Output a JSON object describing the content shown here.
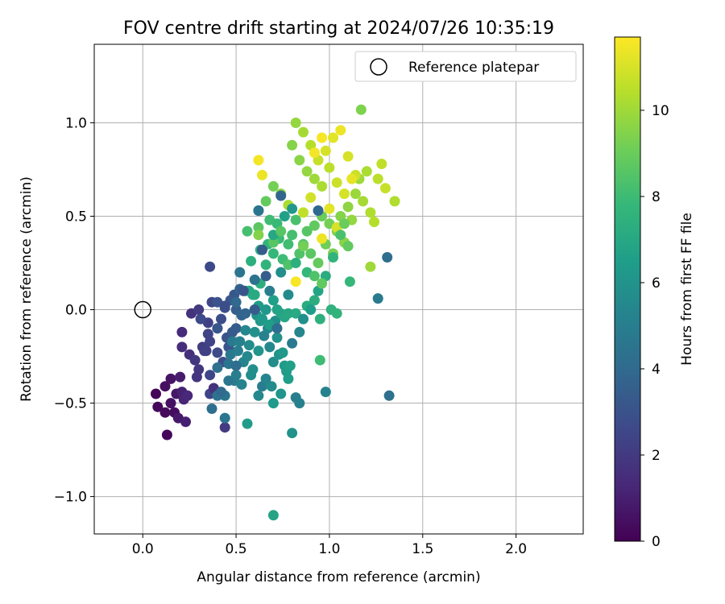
{
  "chart_data": {
    "type": "scatter",
    "title": "FOV centre drift starting at 2024/07/26 10:35:19",
    "xlabel": "Angular distance from reference (arcmin)",
    "ylabel": "Rotation from reference (arcmin)",
    "xlim": [
      -0.26,
      2.36
    ],
    "ylim": [
      -1.2,
      1.42
    ],
    "xticks": [
      0.0,
      0.5,
      1.0,
      1.5,
      2.0
    ],
    "xtick_labels": [
      "0.0",
      "0.5",
      "1.0",
      "1.5",
      "2.0"
    ],
    "yticks": [
      -1.0,
      -0.5,
      0.0,
      0.5,
      1.0
    ],
    "ytick_labels": [
      "−1.0",
      "−0.5",
      "0.0",
      "0.5",
      "1.0"
    ],
    "grid": true,
    "legend": {
      "placement": "top-right",
      "label": "Reference platepar"
    },
    "reference_point": {
      "x": 0.0,
      "y": 0.0
    },
    "colorbar": {
      "label": "Hours from first FF file",
      "colormap": "viridis",
      "range": [
        0,
        11.7
      ],
      "ticks": [
        0,
        2,
        4,
        6,
        8,
        10
      ],
      "tick_labels": [
        "0",
        "2",
        "4",
        "6",
        "8",
        "10"
      ]
    },
    "colormap_stops": [
      "#440154",
      "#482878",
      "#3e4989",
      "#31688e",
      "#26828e",
      "#1f9e89",
      "#35b779",
      "#6ece58",
      "#b5de2b",
      "#fde725"
    ],
    "points": [
      [
        0.07,
        -0.45,
        0.1
      ],
      [
        0.08,
        -0.52,
        0.2
      ],
      [
        0.12,
        -0.55,
        0.3
      ],
      [
        0.13,
        -0.67,
        0.2
      ],
      [
        0.12,
        -0.41,
        0.5
      ],
      [
        0.15,
        -0.37,
        0.6
      ],
      [
        0.15,
        -0.5,
        0.5
      ],
      [
        0.17,
        -0.55,
        0.4
      ],
      [
        0.18,
        -0.45,
        0.7
      ],
      [
        0.19,
        -0.58,
        0.8
      ],
      [
        0.2,
        -0.36,
        0.9
      ],
      [
        0.21,
        -0.44,
        1.1
      ],
      [
        0.22,
        -0.48,
        1.2
      ],
      [
        0.23,
        -0.6,
        1.0
      ],
      [
        0.24,
        -0.46,
        1.3
      ],
      [
        0.21,
        -0.12,
        1.4
      ],
      [
        0.21,
        -0.2,
        1.5
      ],
      [
        0.25,
        -0.24,
        1.6
      ],
      [
        0.26,
        -0.02,
        1.7
      ],
      [
        0.29,
        -0.36,
        1.8
      ],
      [
        0.3,
        -0.32,
        1.9
      ],
      [
        0.3,
        0.0,
        2.0
      ],
      [
        0.32,
        -0.2,
        2.1
      ],
      [
        0.33,
        -0.22,
        2.2
      ],
      [
        0.35,
        -0.07,
        2.3
      ],
      [
        0.35,
        -0.13,
        2.4
      ],
      [
        0.36,
        -0.17,
        2.4
      ],
      [
        0.37,
        0.04,
        2.5
      ],
      [
        0.36,
        -0.45,
        2.4
      ],
      [
        0.36,
        -0.35,
        2.5
      ],
      [
        0.36,
        0.23,
        2.6
      ],
      [
        0.4,
        -0.1,
        2.6
      ],
      [
        0.4,
        -0.23,
        2.7
      ],
      [
        0.42,
        -0.05,
        2.8
      ],
      [
        0.43,
        -0.28,
        2.9
      ],
      [
        0.44,
        0.01,
        3.0
      ],
      [
        0.45,
        -0.15,
        3.0
      ],
      [
        0.46,
        -0.2,
        3.1
      ],
      [
        0.47,
        0.05,
        3.2
      ],
      [
        0.48,
        -0.12,
        3.3
      ],
      [
        0.44,
        -0.63,
        2.0
      ],
      [
        0.49,
        0.08,
        3.2
      ],
      [
        0.5,
        -0.1,
        3.4
      ],
      [
        0.5,
        0.0,
        3.5
      ],
      [
        0.52,
        0.11,
        3.6
      ],
      [
        0.53,
        -0.03,
        3.7
      ],
      [
        0.38,
        -0.42,
        1.7
      ],
      [
        0.37,
        -0.53,
        4.2
      ],
      [
        0.4,
        -0.31,
        4.3
      ],
      [
        0.4,
        -0.46,
        4.4
      ],
      [
        0.44,
        -0.46,
        4.5
      ],
      [
        0.44,
        -0.58,
        4.6
      ],
      [
        0.46,
        -0.29,
        4.6
      ],
      [
        0.47,
        -0.24,
        4.7
      ],
      [
        0.48,
        -0.17,
        4.8
      ],
      [
        0.49,
        -0.38,
        4.9
      ],
      [
        0.5,
        -0.35,
        5.0
      ],
      [
        0.51,
        -0.22,
        5.0
      ],
      [
        0.52,
        -0.17,
        5.1
      ],
      [
        0.53,
        -0.4,
        5.2
      ],
      [
        0.54,
        -0.28,
        5.3
      ],
      [
        0.55,
        -0.11,
        5.4
      ],
      [
        0.56,
        -0.25,
        5.5
      ],
      [
        0.57,
        -0.19,
        5.6
      ],
      [
        0.58,
        -0.35,
        5.7
      ],
      [
        0.59,
        -0.32,
        5.8
      ],
      [
        0.6,
        -0.12,
        5.9
      ],
      [
        0.61,
        -0.03,
        6.0
      ],
      [
        0.62,
        -0.22,
        6.1
      ],
      [
        0.63,
        -0.06,
        6.2
      ],
      [
        0.64,
        -0.41,
        5.0
      ],
      [
        0.65,
        -0.14,
        5.2
      ],
      [
        0.66,
        -0.37,
        5.3
      ],
      [
        0.67,
        -0.1,
        5.4
      ],
      [
        0.68,
        -0.2,
        5.5
      ],
      [
        0.69,
        -0.41,
        5.6
      ],
      [
        0.7,
        -0.28,
        5.7
      ],
      [
        0.71,
        -0.06,
        5.8
      ],
      [
        0.72,
        -0.15,
        5.9
      ],
      [
        0.73,
        -0.24,
        6.0
      ],
      [
        0.74,
        -0.45,
        6.1
      ],
      [
        0.75,
        -0.23,
        6.2
      ],
      [
        0.76,
        -0.3,
        6.3
      ],
      [
        0.77,
        -0.33,
        6.4
      ],
      [
        0.78,
        -0.37,
        6.5
      ],
      [
        0.79,
        -0.3,
        6.6
      ],
      [
        0.8,
        -0.66,
        6.0
      ],
      [
        0.7,
        -0.5,
        6.3
      ],
      [
        0.56,
        -0.61,
        6.4
      ],
      [
        0.62,
        -0.46,
        5.5
      ],
      [
        0.82,
        -0.47,
        5.0
      ],
      [
        0.84,
        -0.5,
        5.1
      ],
      [
        0.98,
        -0.44,
        5.2
      ],
      [
        1.32,
        -0.46,
        4.3
      ],
      [
        0.7,
        -1.1,
        6.8
      ],
      [
        0.55,
        0.1,
        6.9
      ],
      [
        0.57,
        0.1,
        7.0
      ],
      [
        0.59,
        0.08,
        7.1
      ],
      [
        0.6,
        0.0,
        6.5
      ],
      [
        0.62,
        0.02,
        6.4
      ],
      [
        0.64,
        -0.05,
        6.3
      ],
      [
        0.66,
        0.0,
        6.2
      ],
      [
        0.68,
        -0.08,
        6.5
      ],
      [
        0.7,
        0.05,
        6.6
      ],
      [
        0.72,
        0.0,
        6.7
      ],
      [
        0.74,
        -0.02,
        6.8
      ],
      [
        0.76,
        -0.04,
        6.9
      ],
      [
        0.78,
        -0.02,
        7.0
      ],
      [
        0.82,
        -0.02,
        7.1
      ],
      [
        0.88,
        0.02,
        7.2
      ],
      [
        0.92,
        0.05,
        7.3
      ],
      [
        0.95,
        -0.05,
        7.4
      ],
      [
        1.01,
        0.0,
        7.5
      ],
      [
        1.04,
        -0.02,
        7.6
      ],
      [
        0.95,
        -0.27,
        8.0
      ],
      [
        1.11,
        0.15,
        7.8
      ],
      [
        0.58,
        0.26,
        7.4
      ],
      [
        0.63,
        0.32,
        7.5
      ],
      [
        0.67,
        0.35,
        7.6
      ],
      [
        0.7,
        0.3,
        7.8
      ],
      [
        0.73,
        0.38,
        7.9
      ],
      [
        0.75,
        0.27,
        8.0
      ],
      [
        0.78,
        0.35,
        8.1
      ],
      [
        0.8,
        0.4,
        8.2
      ],
      [
        0.82,
        0.48,
        8.3
      ],
      [
        0.84,
        0.3,
        8.4
      ],
      [
        0.86,
        0.35,
        8.5
      ],
      [
        0.88,
        0.42,
        8.6
      ],
      [
        0.9,
        0.3,
        8.7
      ],
      [
        0.92,
        0.45,
        8.8
      ],
      [
        0.94,
        0.25,
        8.9
      ],
      [
        0.96,
        0.5,
        9.0
      ],
      [
        0.98,
        0.35,
        9.1
      ],
      [
        1.0,
        0.46,
        9.2
      ],
      [
        1.02,
        0.3,
        9.3
      ],
      [
        1.04,
        0.42,
        9.4
      ],
      [
        1.06,
        0.5,
        9.5
      ],
      [
        1.08,
        0.36,
        9.6
      ],
      [
        1.1,
        0.55,
        9.7
      ],
      [
        1.12,
        0.48,
        9.8
      ],
      [
        1.14,
        0.62,
        9.9
      ],
      [
        1.16,
        0.7,
        10.0
      ],
      [
        1.18,
        0.58,
        10.1
      ],
      [
        1.2,
        0.74,
        10.2
      ],
      [
        1.22,
        0.52,
        10.3
      ],
      [
        1.24,
        0.47,
        10.4
      ],
      [
        1.26,
        0.7,
        10.5
      ],
      [
        1.28,
        0.78,
        10.6
      ],
      [
        1.3,
        0.65,
        10.7
      ],
      [
        1.22,
        0.23,
        10.0
      ],
      [
        1.35,
        0.58,
        10.3
      ],
      [
        1.17,
        1.07,
        9.4
      ],
      [
        0.82,
        1.0,
        9.8
      ],
      [
        0.86,
        0.95,
        10.1
      ],
      [
        0.9,
        0.88,
        10.4
      ],
      [
        0.94,
        0.8,
        10.7
      ],
      [
        0.98,
        0.85,
        11.0
      ],
      [
        1.02,
        0.92,
        11.2
      ],
      [
        1.06,
        0.96,
        11.4
      ],
      [
        1.1,
        0.82,
        11.0
      ],
      [
        1.14,
        0.72,
        10.8
      ],
      [
        0.8,
        0.88,
        9.5
      ],
      [
        0.84,
        0.8,
        9.6
      ],
      [
        0.88,
        0.74,
        9.8
      ],
      [
        0.92,
        0.7,
        10.0
      ],
      [
        0.96,
        0.66,
        10.2
      ],
      [
        1.0,
        0.76,
        10.5
      ],
      [
        1.04,
        0.68,
        10.8
      ],
      [
        1.08,
        0.62,
        11.0
      ],
      [
        1.12,
        0.7,
        11.3
      ],
      [
        0.62,
        0.8,
        11.5
      ],
      [
        0.64,
        0.72,
        11.4
      ],
      [
        0.96,
        0.92,
        11.6
      ],
      [
        0.92,
        0.84,
        11.5
      ],
      [
        1.0,
        0.54,
        11.2
      ],
      [
        0.82,
        0.15,
        11.6
      ],
      [
        0.96,
        0.38,
        11.4
      ],
      [
        1.04,
        0.44,
        11.0
      ],
      [
        0.9,
        0.6,
        10.9
      ],
      [
        0.86,
        0.52,
        10.6
      ],
      [
        0.78,
        0.56,
        10.2
      ],
      [
        0.74,
        0.62,
        9.6
      ],
      [
        0.7,
        0.66,
        9.2
      ],
      [
        0.66,
        0.58,
        8.9
      ],
      [
        0.62,
        0.44,
        8.7
      ],
      [
        0.62,
        0.4,
        9.5
      ],
      [
        0.68,
        0.48,
        8.0
      ],
      [
        0.72,
        0.46,
        7.9
      ],
      [
        0.7,
        0.36,
        8.6
      ],
      [
        0.78,
        0.24,
        8.4
      ],
      [
        0.66,
        0.24,
        7.6
      ],
      [
        0.63,
        0.14,
        7.3
      ],
      [
        0.6,
        0.08,
        7.1
      ],
      [
        0.56,
        0.42,
        8.2
      ],
      [
        0.62,
        0.53,
        6.9
      ],
      [
        0.7,
        0.4,
        7.0
      ],
      [
        0.76,
        0.5,
        6.6
      ],
      [
        0.8,
        0.54,
        6.2
      ],
      [
        0.74,
        0.61,
        3.8
      ],
      [
        0.62,
        0.53,
        4.6
      ],
      [
        0.64,
        0.32,
        3.4
      ],
      [
        0.66,
        0.18,
        3.5
      ],
      [
        0.6,
        0.0,
        3.4
      ],
      [
        0.55,
        -0.02,
        3.8
      ],
      [
        0.52,
        0.2,
        4.6
      ],
      [
        0.5,
        0.04,
        4.0
      ],
      [
        0.54,
        0.1,
        3.1
      ],
      [
        0.6,
        0.16,
        4.4
      ],
      [
        0.68,
        0.1,
        5.0
      ],
      [
        0.74,
        0.2,
        5.8
      ],
      [
        0.78,
        0.08,
        5.6
      ],
      [
        0.72,
        -0.1,
        4.2
      ],
      [
        0.8,
        -0.18,
        4.8
      ],
      [
        0.84,
        -0.12,
        5.4
      ],
      [
        0.86,
        -0.05,
        5.8
      ],
      [
        0.9,
        0.0,
        6.5
      ],
      [
        0.94,
        0.1,
        6.8
      ],
      [
        0.98,
        0.18,
        7.2
      ],
      [
        1.02,
        0.28,
        7.6
      ],
      [
        1.06,
        0.4,
        8.3
      ],
      [
        1.08,
        0.46,
        9.0
      ],
      [
        1.1,
        0.34,
        8.8
      ],
      [
        0.82,
        0.25,
        7.4
      ],
      [
        0.88,
        0.2,
        7.8
      ],
      [
        0.92,
        0.18,
        8.4
      ],
      [
        0.96,
        0.14,
        8.8
      ],
      [
        0.86,
        0.34,
        9.2
      ],
      [
        0.74,
        0.42,
        8.6
      ],
      [
        1.26,
        0.06,
        4.8
      ],
      [
        1.31,
        0.28,
        4.2
      ],
      [
        0.94,
        0.53,
        3.9
      ],
      [
        0.5,
        -0.3,
        4.2
      ],
      [
        0.46,
        -0.38,
        4.6
      ],
      [
        0.42,
        -0.44,
        4.0
      ],
      [
        0.34,
        -0.22,
        2.3
      ],
      [
        0.28,
        -0.27,
        1.9
      ],
      [
        0.31,
        -0.05,
        2.6
      ],
      [
        0.4,
        0.04,
        3.0
      ],
      [
        0.44,
        0.02,
        2.8
      ],
      [
        0.4,
        -0.1,
        3.2
      ]
    ]
  }
}
